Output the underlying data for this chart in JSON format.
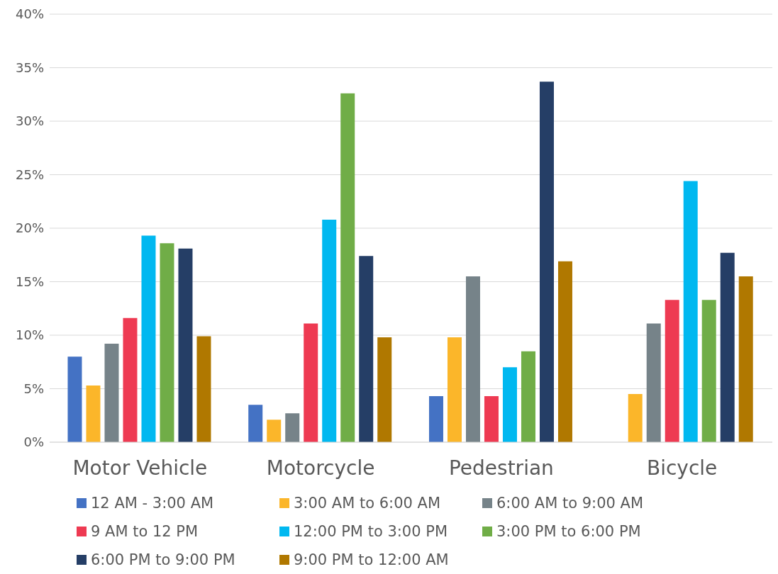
{
  "chart_data": {
    "type": "bar",
    "categories": [
      "Motor Vehicle",
      "Motorcycle",
      "Pedestrian",
      "Bicycle"
    ],
    "series": [
      {
        "name": "12 AM - 3:00 AM",
        "color": "#4472c4",
        "values": [
          8.0,
          3.5,
          4.3,
          0
        ]
      },
      {
        "name": "3:00 AM to 6:00 AM",
        "color": "#fbb62a",
        "values": [
          5.3,
          2.1,
          9.8,
          4.5
        ]
      },
      {
        "name": "6:00 AM to 9:00 AM",
        "color": "#768389",
        "values": [
          9.2,
          2.7,
          15.5,
          11.1
        ]
      },
      {
        "name": "9 AM to 12 PM",
        "color": "#ee3a52",
        "values": [
          11.6,
          11.1,
          4.3,
          13.3
        ]
      },
      {
        "name": "12:00 PM to 3:00 PM",
        "color": "#00b8f0",
        "values": [
          19.3,
          20.8,
          7.0,
          24.4
        ]
      },
      {
        "name": "3:00 PM to 6:00 PM",
        "color": "#70ad47",
        "values": [
          18.6,
          32.6,
          8.5,
          13.3
        ]
      },
      {
        "name": "6:00 PM to 9:00 PM",
        "color": "#253e66",
        "values": [
          18.1,
          17.4,
          33.7,
          17.7
        ]
      },
      {
        "name": "9:00 PM to 12:00 AM",
        "color": "#b07800",
        "values": [
          9.9,
          9.8,
          16.9,
          15.5
        ]
      }
    ],
    "ylim": [
      0,
      40
    ],
    "yticks": [
      {
        "value": 0,
        "label": "0%"
      },
      {
        "value": 5,
        "label": "5%"
      },
      {
        "value": 10,
        "label": "10%"
      },
      {
        "value": 15,
        "label": "15%"
      },
      {
        "value": 20,
        "label": "20%"
      },
      {
        "value": 25,
        "label": "25%"
      },
      {
        "value": 30,
        "label": "30%"
      },
      {
        "value": 35,
        "label": "35%"
      },
      {
        "value": 40,
        "label": "40%"
      }
    ],
    "grid": "y",
    "legend": "bottom"
  }
}
